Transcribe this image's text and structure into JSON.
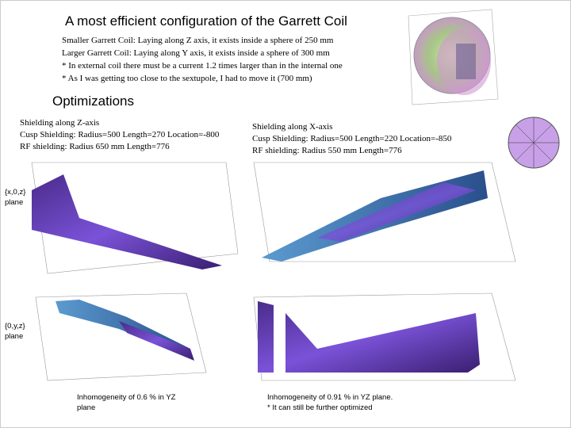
{
  "title": "A most efficient configuration of the Garrett Coil",
  "intro": [
    "Smaller Garrett Coil: Laying along Z axis, it exists inside a sphere of 250 mm",
    "Larger Garrett Coil: Laying along Y axis, it exists inside a sphere of 300 mm",
    "* In external coil there must be a current 1.2 times larger than in the internal one",
    "* As I was getting too close to the sextupole, I had to move it (700 mm)"
  ],
  "section": "Optimizations",
  "left": {
    "lines": [
      "Shielding along Z-axis",
      "Cusp Shielding: Radius=500 Length=270 Location=-800",
      "RF shielding: Radius 650 mm Length=776"
    ],
    "note": "Inhomogeneity of 0.6 % in YZ plane"
  },
  "right": {
    "lines": [
      "Shielding along X-axis",
      "Cusp Shielding: Radius=500 Length=220 Location=-850",
      "RF shielding: Radius 550 mm Length=776"
    ],
    "notes": [
      "Inhomogeneity of 0.91 % in YZ plane.",
      "* It can still be further optimized"
    ]
  },
  "planes": [
    "{x,0,z} plane",
    "{0,y,z} plane"
  ]
}
